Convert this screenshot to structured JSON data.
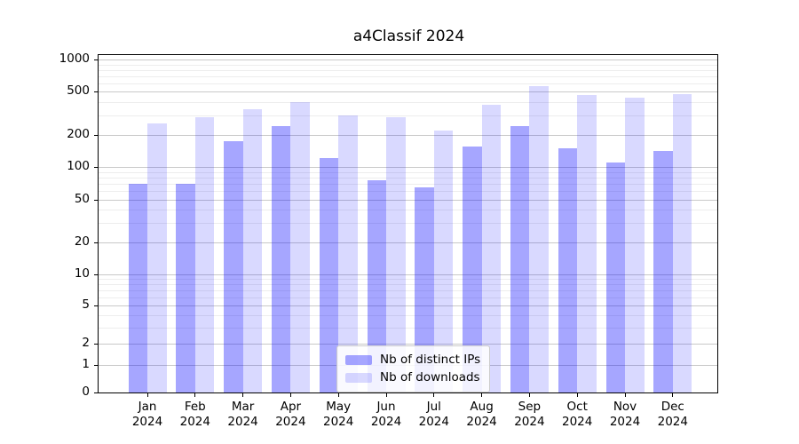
{
  "title": "a4Classif 2024",
  "chart_data": {
    "type": "bar",
    "categories": [
      "Jan",
      "Feb",
      "Mar",
      "Apr",
      "May",
      "Jun",
      "Jul",
      "Aug",
      "Sep",
      "Oct",
      "Nov",
      "Dec"
    ],
    "x_tick_year_line": "2024",
    "series": [
      {
        "name": "Nb of distinct IPs",
        "color": "rgba(0,0,255,0.35)",
        "color_hex_on_white": "#a6a6ff",
        "values": [
          70,
          70,
          175,
          240,
          120,
          75,
          65,
          155,
          240,
          150,
          110,
          140
        ]
      },
      {
        "name": "Nb of downloads",
        "color": "rgba(0,0,255,0.15)",
        "color_hex_on_white": "#d9d9ff",
        "values": [
          255,
          290,
          345,
          400,
          300,
          290,
          220,
          380,
          560,
          470,
          440,
          480
        ]
      }
    ],
    "yscale": "asinh",
    "ylim": [
      0,
      1000
    ],
    "y_major_ticks": [
      0,
      1,
      2,
      5,
      10,
      20,
      50,
      100,
      200,
      500,
      1000
    ],
    "y_minor_ticks": [
      3,
      4,
      6,
      7,
      8,
      9,
      30,
      40,
      60,
      70,
      80,
      90,
      300,
      400,
      600,
      700,
      800,
      900
    ],
    "grid": "on",
    "legend_position": "lower center",
    "major_grid_color": "#c9c9c9",
    "minor_grid_color": "#ededed"
  }
}
